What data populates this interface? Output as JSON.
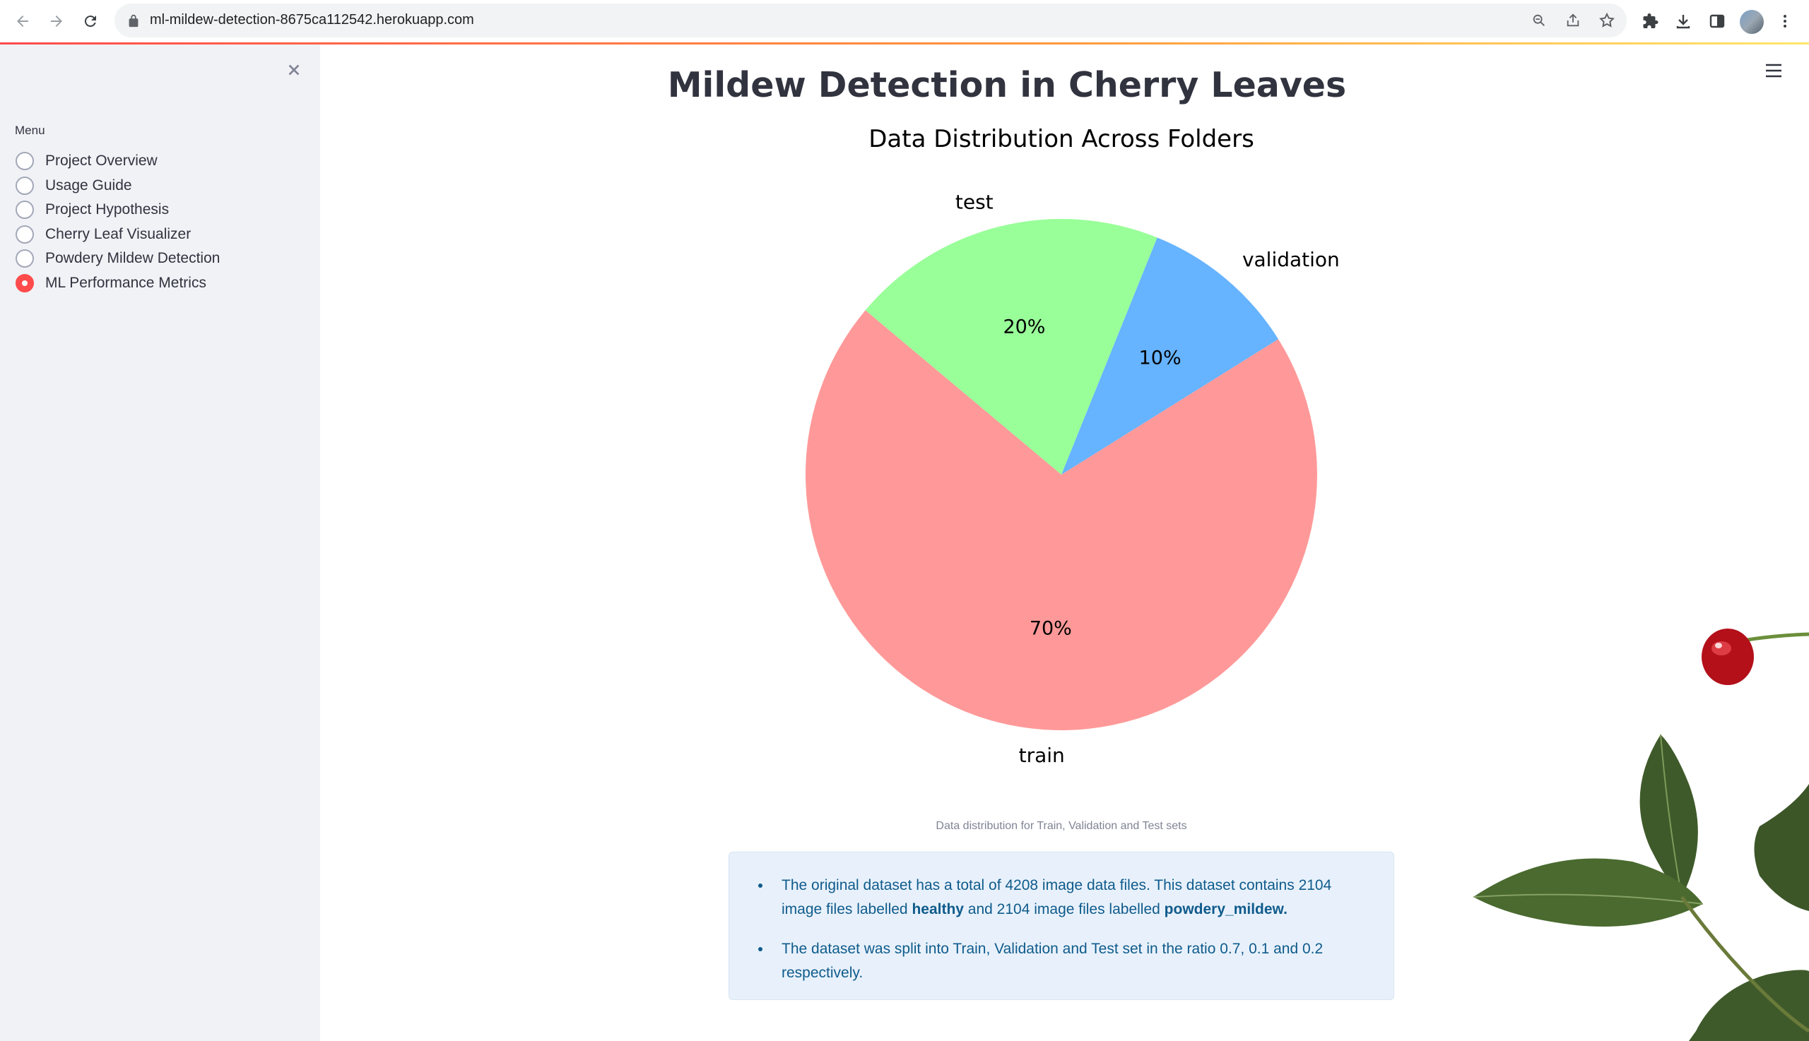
{
  "browser": {
    "url": "ml-mildew-detection-8675ca112542.herokuapp.com"
  },
  "sidebar": {
    "menu_label": "Menu",
    "items": [
      {
        "label": "Project Overview",
        "selected": false
      },
      {
        "label": "Usage Guide",
        "selected": false
      },
      {
        "label": "Project Hypothesis",
        "selected": false
      },
      {
        "label": "Cherry Leaf Visualizer",
        "selected": false
      },
      {
        "label": "Powdery Mildew Detection",
        "selected": false
      },
      {
        "label": "ML Performance Metrics",
        "selected": true
      }
    ]
  },
  "main": {
    "title": "Mildew Detection in Cherry Leaves",
    "caption": "Data distribution for Train, Validation and Test sets",
    "info": {
      "bullet1": {
        "pre": "The original dataset has a total of 4208 image data files. This dataset contains 2104 image files labelled ",
        "bold1": "healthy",
        "mid": " and 2104 image files labelled ",
        "bold2": "powdery_mildew."
      },
      "bullet2": "The dataset was split into Train, Validation and Test set in the ratio 0.7, 0.1 and 0.2 respectively."
    }
  },
  "chart_data": {
    "type": "pie",
    "title": "Data Distribution Across Folders",
    "slices": [
      {
        "label": "train",
        "value": 70,
        "pct_label": "70%",
        "color": "#ff9999"
      },
      {
        "label": "validation",
        "value": 10,
        "pct_label": "10%",
        "color": "#66b3ff"
      },
      {
        "label": "test",
        "value": 20,
        "pct_label": "20%",
        "color": "#99ff99"
      }
    ]
  },
  "colors": {
    "accent": "#ff4b4b",
    "sidebar_bg": "#f0f2f6",
    "info_bg": "#e8f1fb",
    "info_text": "#0f5b8c"
  }
}
